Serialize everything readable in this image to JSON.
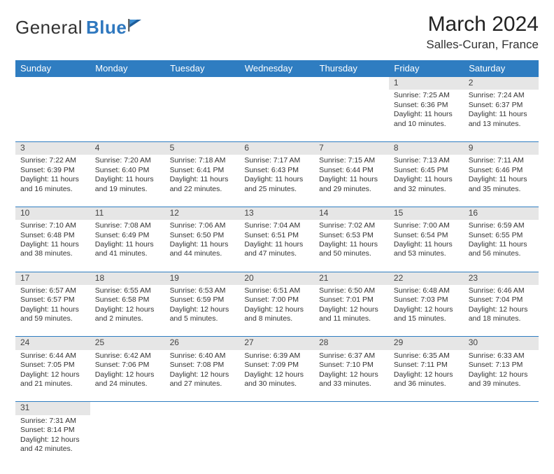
{
  "logo": {
    "text1": "General",
    "text2": "Blue"
  },
  "title": "March 2024",
  "subtitle": "Salles-Curan, France",
  "colors": {
    "header_bg": "#2f7dc1",
    "header_text": "#ffffff",
    "accent": "#2f7dc1",
    "daynum_bg": "#e6e6e6",
    "text": "#333333"
  },
  "day_headers": [
    "Sunday",
    "Monday",
    "Tuesday",
    "Wednesday",
    "Thursday",
    "Friday",
    "Saturday"
  ],
  "weeks": [
    [
      null,
      null,
      null,
      null,
      null,
      {
        "n": "1",
        "sunrise": "Sunrise: 7:25 AM",
        "sunset": "Sunset: 6:36 PM",
        "daylight": "Daylight: 11 hours and 10 minutes."
      },
      {
        "n": "2",
        "sunrise": "Sunrise: 7:24 AM",
        "sunset": "Sunset: 6:37 PM",
        "daylight": "Daylight: 11 hours and 13 minutes."
      }
    ],
    [
      {
        "n": "3",
        "sunrise": "Sunrise: 7:22 AM",
        "sunset": "Sunset: 6:39 PM",
        "daylight": "Daylight: 11 hours and 16 minutes."
      },
      {
        "n": "4",
        "sunrise": "Sunrise: 7:20 AM",
        "sunset": "Sunset: 6:40 PM",
        "daylight": "Daylight: 11 hours and 19 minutes."
      },
      {
        "n": "5",
        "sunrise": "Sunrise: 7:18 AM",
        "sunset": "Sunset: 6:41 PM",
        "daylight": "Daylight: 11 hours and 22 minutes."
      },
      {
        "n": "6",
        "sunrise": "Sunrise: 7:17 AM",
        "sunset": "Sunset: 6:43 PM",
        "daylight": "Daylight: 11 hours and 25 minutes."
      },
      {
        "n": "7",
        "sunrise": "Sunrise: 7:15 AM",
        "sunset": "Sunset: 6:44 PM",
        "daylight": "Daylight: 11 hours and 29 minutes."
      },
      {
        "n": "8",
        "sunrise": "Sunrise: 7:13 AM",
        "sunset": "Sunset: 6:45 PM",
        "daylight": "Daylight: 11 hours and 32 minutes."
      },
      {
        "n": "9",
        "sunrise": "Sunrise: 7:11 AM",
        "sunset": "Sunset: 6:46 PM",
        "daylight": "Daylight: 11 hours and 35 minutes."
      }
    ],
    [
      {
        "n": "10",
        "sunrise": "Sunrise: 7:10 AM",
        "sunset": "Sunset: 6:48 PM",
        "daylight": "Daylight: 11 hours and 38 minutes."
      },
      {
        "n": "11",
        "sunrise": "Sunrise: 7:08 AM",
        "sunset": "Sunset: 6:49 PM",
        "daylight": "Daylight: 11 hours and 41 minutes."
      },
      {
        "n": "12",
        "sunrise": "Sunrise: 7:06 AM",
        "sunset": "Sunset: 6:50 PM",
        "daylight": "Daylight: 11 hours and 44 minutes."
      },
      {
        "n": "13",
        "sunrise": "Sunrise: 7:04 AM",
        "sunset": "Sunset: 6:51 PM",
        "daylight": "Daylight: 11 hours and 47 minutes."
      },
      {
        "n": "14",
        "sunrise": "Sunrise: 7:02 AM",
        "sunset": "Sunset: 6:53 PM",
        "daylight": "Daylight: 11 hours and 50 minutes."
      },
      {
        "n": "15",
        "sunrise": "Sunrise: 7:00 AM",
        "sunset": "Sunset: 6:54 PM",
        "daylight": "Daylight: 11 hours and 53 minutes."
      },
      {
        "n": "16",
        "sunrise": "Sunrise: 6:59 AM",
        "sunset": "Sunset: 6:55 PM",
        "daylight": "Daylight: 11 hours and 56 minutes."
      }
    ],
    [
      {
        "n": "17",
        "sunrise": "Sunrise: 6:57 AM",
        "sunset": "Sunset: 6:57 PM",
        "daylight": "Daylight: 11 hours and 59 minutes."
      },
      {
        "n": "18",
        "sunrise": "Sunrise: 6:55 AM",
        "sunset": "Sunset: 6:58 PM",
        "daylight": "Daylight: 12 hours and 2 minutes."
      },
      {
        "n": "19",
        "sunrise": "Sunrise: 6:53 AM",
        "sunset": "Sunset: 6:59 PM",
        "daylight": "Daylight: 12 hours and 5 minutes."
      },
      {
        "n": "20",
        "sunrise": "Sunrise: 6:51 AM",
        "sunset": "Sunset: 7:00 PM",
        "daylight": "Daylight: 12 hours and 8 minutes."
      },
      {
        "n": "21",
        "sunrise": "Sunrise: 6:50 AM",
        "sunset": "Sunset: 7:01 PM",
        "daylight": "Daylight: 12 hours and 11 minutes."
      },
      {
        "n": "22",
        "sunrise": "Sunrise: 6:48 AM",
        "sunset": "Sunset: 7:03 PM",
        "daylight": "Daylight: 12 hours and 15 minutes."
      },
      {
        "n": "23",
        "sunrise": "Sunrise: 6:46 AM",
        "sunset": "Sunset: 7:04 PM",
        "daylight": "Daylight: 12 hours and 18 minutes."
      }
    ],
    [
      {
        "n": "24",
        "sunrise": "Sunrise: 6:44 AM",
        "sunset": "Sunset: 7:05 PM",
        "daylight": "Daylight: 12 hours and 21 minutes."
      },
      {
        "n": "25",
        "sunrise": "Sunrise: 6:42 AM",
        "sunset": "Sunset: 7:06 PM",
        "daylight": "Daylight: 12 hours and 24 minutes."
      },
      {
        "n": "26",
        "sunrise": "Sunrise: 6:40 AM",
        "sunset": "Sunset: 7:08 PM",
        "daylight": "Daylight: 12 hours and 27 minutes."
      },
      {
        "n": "27",
        "sunrise": "Sunrise: 6:39 AM",
        "sunset": "Sunset: 7:09 PM",
        "daylight": "Daylight: 12 hours and 30 minutes."
      },
      {
        "n": "28",
        "sunrise": "Sunrise: 6:37 AM",
        "sunset": "Sunset: 7:10 PM",
        "daylight": "Daylight: 12 hours and 33 minutes."
      },
      {
        "n": "29",
        "sunrise": "Sunrise: 6:35 AM",
        "sunset": "Sunset: 7:11 PM",
        "daylight": "Daylight: 12 hours and 36 minutes."
      },
      {
        "n": "30",
        "sunrise": "Sunrise: 6:33 AM",
        "sunset": "Sunset: 7:13 PM",
        "daylight": "Daylight: 12 hours and 39 minutes."
      }
    ],
    [
      {
        "n": "31",
        "sunrise": "Sunrise: 7:31 AM",
        "sunset": "Sunset: 8:14 PM",
        "daylight": "Daylight: 12 hours and 42 minutes."
      },
      null,
      null,
      null,
      null,
      null,
      null
    ]
  ]
}
